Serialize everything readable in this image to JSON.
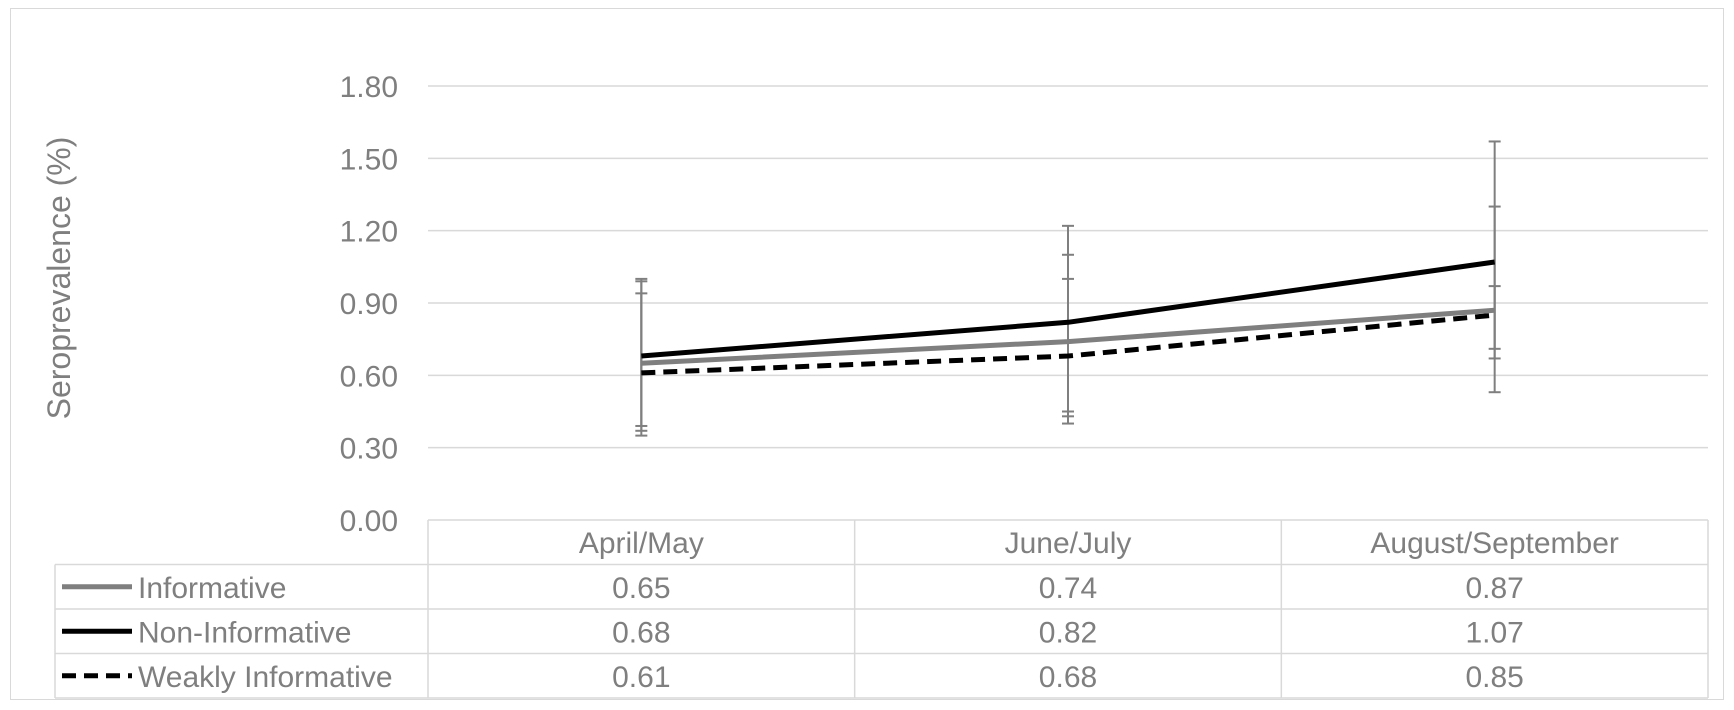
{
  "chart_data": {
    "type": "line",
    "title": "",
    "xlabel": "",
    "ylabel": "Seroprevalence (%)",
    "ylim": [
      0,
      1.8
    ],
    "y_ticks": [
      "0.00",
      "0.30",
      "0.60",
      "0.90",
      "1.20",
      "1.50",
      "1.80"
    ],
    "categories": [
      "April/May",
      "June/July",
      "August/September"
    ],
    "grid": true,
    "legend": "data-table",
    "series": [
      {
        "name": "Informative",
        "values": [
          0.65,
          0.74,
          0.87
        ],
        "value_labels": [
          "0.65",
          "0.74",
          "0.87"
        ],
        "error_low": [
          0.39,
          0.45,
          0.67
        ],
        "error_high": [
          0.94,
          1.0,
          0.97
        ],
        "color": "#7f7f7f",
        "style": "solid"
      },
      {
        "name": "Non-Informative",
        "values": [
          0.68,
          0.82,
          1.07
        ],
        "value_labels": [
          "0.68",
          "0.82",
          "1.07"
        ],
        "error_low": [
          0.37,
          0.43,
          0.53
        ],
        "error_high": [
          0.99,
          1.22,
          1.57
        ],
        "color": "#000000",
        "style": "solid"
      },
      {
        "name": "Weakly Informative",
        "values": [
          0.61,
          0.68,
          0.85
        ],
        "value_labels": [
          "0.61",
          "0.68",
          "0.85"
        ],
        "error_low": [
          0.35,
          0.4,
          0.71
        ],
        "error_high": [
          1.0,
          1.1,
          1.3
        ],
        "color": "#000000",
        "style": "dashed"
      }
    ]
  }
}
